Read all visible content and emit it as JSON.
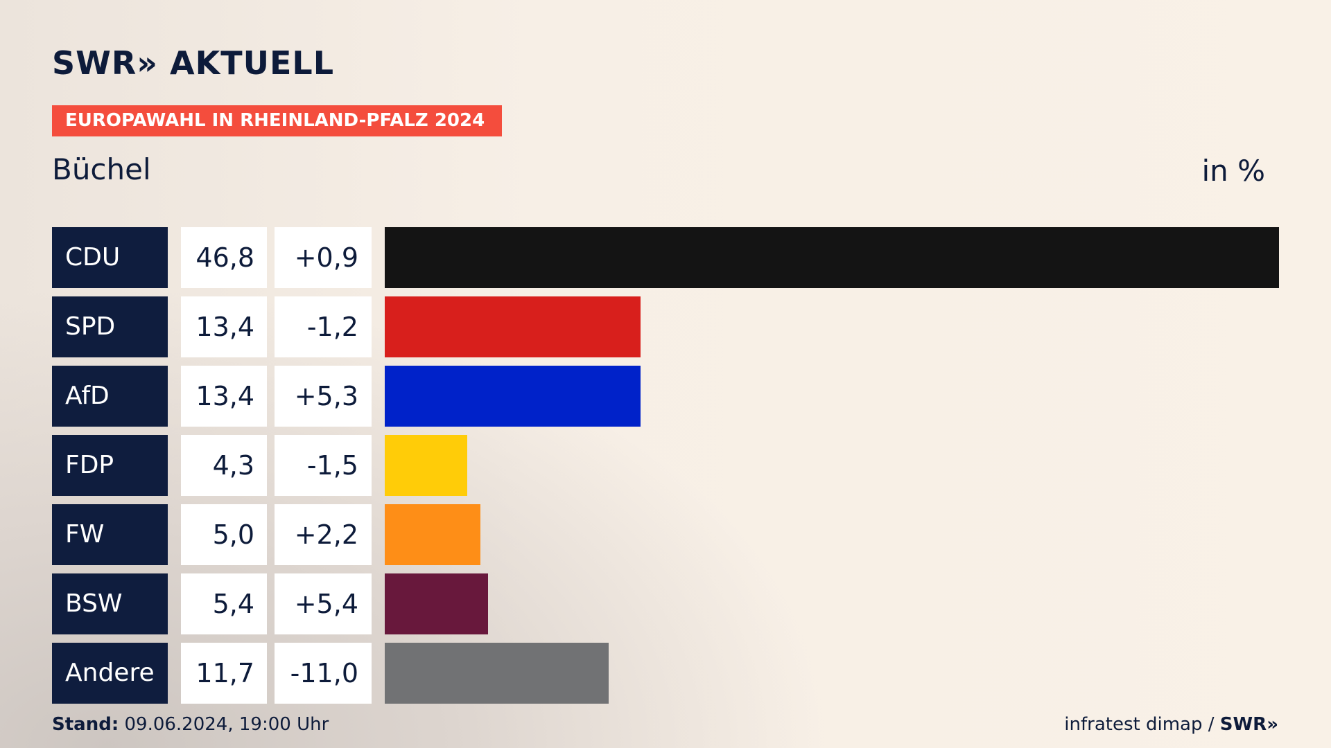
{
  "header": {
    "logo_text": "SWR» AKTUELL",
    "banner": "EUROPAWAHL IN RHEINLAND-PFALZ 2024",
    "place": "Büchel",
    "unit": "in %"
  },
  "footer": {
    "stand_label": "Stand:",
    "stand_value": "09.06.2024, 19:00 Uhr",
    "source": "infratest dimap /",
    "source_brand": "SWR»"
  },
  "chart_data": {
    "type": "bar",
    "orientation": "horizontal",
    "title": "Büchel",
    "unit": "in %",
    "categories": [
      "CDU",
      "SPD",
      "AfD",
      "FDP",
      "FW",
      "BSW",
      "Andere"
    ],
    "values": [
      46.8,
      13.4,
      13.4,
      4.3,
      5.0,
      5.4,
      11.7
    ],
    "value_labels": [
      "46,8",
      "13,4",
      "13,4",
      "4,3",
      "5,0",
      "5,4",
      "11,7"
    ],
    "diff_labels": [
      "+0,9",
      "-1,2",
      "+5,3",
      "-1,5",
      "+2,2",
      "+5,4",
      "-11,0"
    ],
    "colors": [
      "#141414",
      "#d81f1c",
      "#0022c9",
      "#ffcc08",
      "#fe8e17",
      "#68183c",
      "#717274"
    ],
    "xlim": [
      0,
      46.8
    ],
    "grid": false,
    "legend": "none"
  }
}
